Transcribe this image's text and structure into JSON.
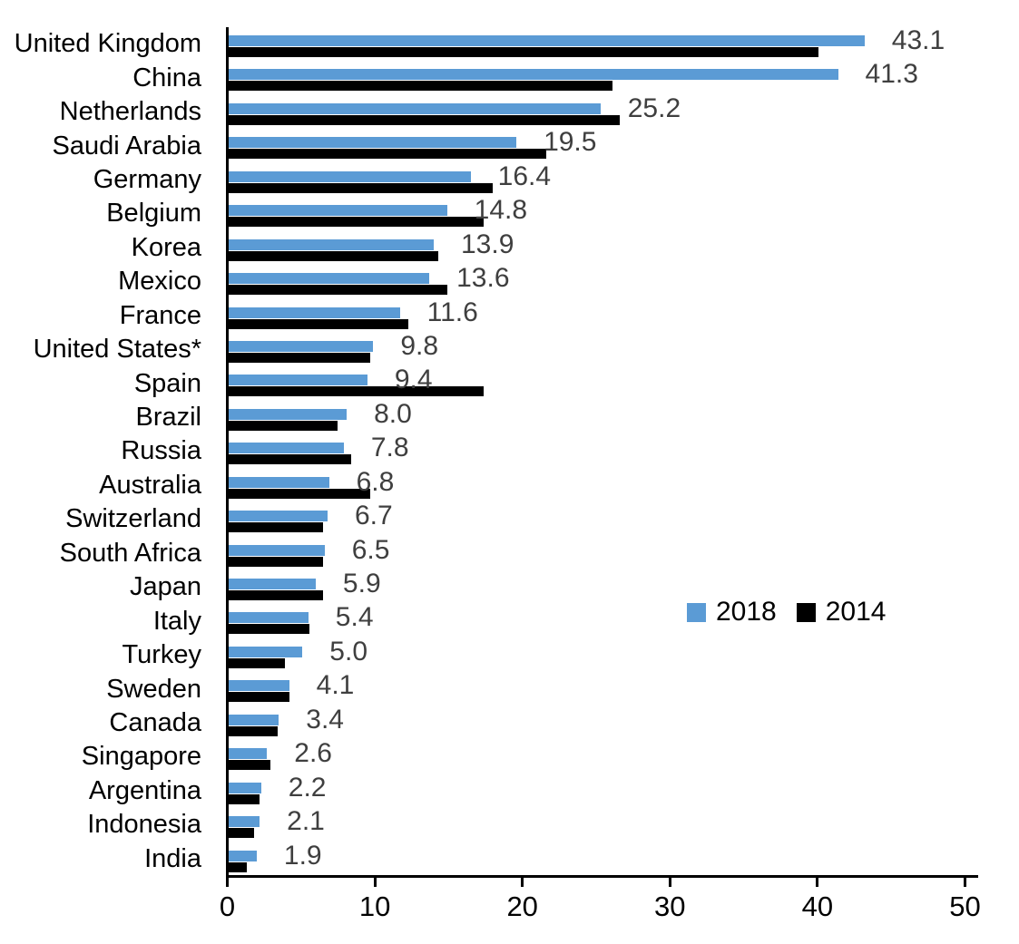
{
  "chart_data": {
    "type": "bar",
    "orientation": "horizontal",
    "title": "",
    "xlabel": "",
    "ylabel": "",
    "categories": [
      "United Kingdom",
      "China",
      "Netherlands",
      "Saudi Arabia",
      "Germany",
      "Belgium",
      "Korea",
      "Mexico",
      "France",
      "United States*",
      "Spain",
      "Brazil",
      "Russia",
      "Australia",
      "Switzerland",
      "South Africa",
      "Japan",
      "Italy",
      "Turkey",
      "Sweden",
      "Canada",
      "Singapore",
      "Argentina",
      "Indonesia",
      "India"
    ],
    "series": [
      {
        "name": "2018",
        "color": "#5B9BD5",
        "values": [
          43.1,
          41.3,
          25.2,
          19.5,
          16.4,
          14.8,
          13.9,
          13.6,
          11.6,
          9.8,
          9.4,
          8.0,
          7.8,
          6.8,
          6.7,
          6.5,
          5.9,
          5.4,
          5.0,
          4.1,
          3.4,
          2.6,
          2.2,
          2.1,
          1.9
        ]
      },
      {
        "name": "2014",
        "color": "#000000",
        "values": [
          40.0,
          26.0,
          26.5,
          21.5,
          17.9,
          17.3,
          14.2,
          14.8,
          12.2,
          9.6,
          17.3,
          7.4,
          8.3,
          9.6,
          6.4,
          6.4,
          6.4,
          5.5,
          3.8,
          4.1,
          3.3,
          2.8,
          2.1,
          1.7,
          1.2
        ]
      }
    ],
    "data_labels": {
      "series": "2018",
      "color": "#3f3f3f",
      "values": [
        "43.1",
        "41.3",
        "25.2",
        "19.5",
        "16.4",
        "14.8",
        "13.9",
        "13.6",
        "11.6",
        "9.8",
        "9.4",
        "8.0",
        "7.8",
        "6.8",
        "6.7",
        "6.5",
        "5.9",
        "5.4",
        "5.0",
        "4.1",
        "3.4",
        "2.6",
        "2.2",
        "2.1",
        "1.9"
      ]
    },
    "xlim": [
      0,
      50
    ],
    "x_ticks": [
      "0",
      "10",
      "20",
      "30",
      "40",
      "50"
    ],
    "grid": false,
    "legend_position": "middle-right",
    "legend": [
      "2018",
      "2014"
    ]
  },
  "colors": {
    "bar_2018": "#5B9BD5",
    "bar_2014": "#000000",
    "axis": "#000000",
    "value_label": "#3f3f3f",
    "category_label": "#000000"
  }
}
